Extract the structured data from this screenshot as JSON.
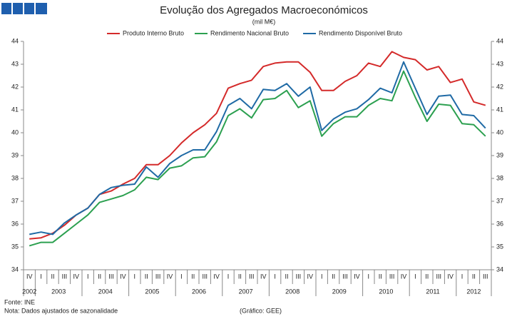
{
  "chart_data": {
    "type": "line",
    "title": "Evolução dos Agregados Macroeconómicos",
    "subtitle": "(mil M€)",
    "source": "Fonte: INE",
    "note": "Nota: Dados ajustados de sazonalidade",
    "credit": "(Gráfico: GEE)",
    "categories": [
      "IV",
      "I",
      "II",
      "III",
      "IV",
      "I",
      "II",
      "III",
      "IV",
      "I",
      "II",
      "III",
      "IV",
      "I",
      "II",
      "III",
      "IV",
      "I",
      "II",
      "III",
      "IV",
      "I",
      "II",
      "III",
      "IV",
      "I",
      "II",
      "III",
      "IV",
      "I",
      "II",
      "III",
      "IV",
      "I",
      "II",
      "III",
      "IV",
      "I",
      "II",
      "III"
    ],
    "years": [
      "2002",
      "2003",
      "2004",
      "2005",
      "2006",
      "2007",
      "2008",
      "2009",
      "2010",
      "2011",
      "2012"
    ],
    "series": [
      {
        "name": "Produto Interno Bruto",
        "color": "#d42a2a",
        "values": [
          35.35,
          35.4,
          35.6,
          35.95,
          36.4,
          36.7,
          37.3,
          37.45,
          37.75,
          38.0,
          38.6,
          38.6,
          39.0,
          39.55,
          40.0,
          40.35,
          40.85,
          41.95,
          42.15,
          42.3,
          42.9,
          43.05,
          43.1,
          43.1,
          42.65,
          41.85,
          41.85,
          42.25,
          42.5,
          43.05,
          42.9,
          43.55,
          43.3,
          43.2,
          42.75,
          42.9,
          42.2,
          42.35,
          41.35,
          41.2
        ]
      },
      {
        "name": "Rendimento Nacional Bruto",
        "color": "#2ca050",
        "values": [
          35.05,
          35.2,
          35.2,
          35.6,
          36.0,
          36.4,
          36.95,
          37.1,
          37.25,
          37.5,
          38.05,
          37.95,
          38.45,
          38.55,
          38.9,
          38.95,
          39.6,
          40.75,
          41.05,
          40.65,
          41.45,
          41.5,
          41.85,
          41.1,
          41.4,
          39.85,
          40.4,
          40.7,
          40.7,
          41.2,
          41.5,
          41.4,
          42.7,
          41.55,
          40.5,
          41.25,
          41.2,
          40.4,
          40.35,
          39.85
        ]
      },
      {
        "name": "Rendimento Disponível Bruto",
        "color": "#1f6aa5",
        "values": [
          35.55,
          35.65,
          35.55,
          36.05,
          36.4,
          36.7,
          37.3,
          37.6,
          37.7,
          37.75,
          38.5,
          38.05,
          38.65,
          39.0,
          39.25,
          39.25,
          40.05,
          41.2,
          41.5,
          41.05,
          41.9,
          41.85,
          42.15,
          41.6,
          42.0,
          40.1,
          40.6,
          40.9,
          41.05,
          41.45,
          41.95,
          41.75,
          43.1,
          41.95,
          40.8,
          41.6,
          41.65,
          40.8,
          40.75,
          40.2
        ]
      }
    ],
    "ylim": [
      34,
      44
    ],
    "yticks": [
      34,
      35,
      36,
      37,
      38,
      39,
      40,
      41,
      42,
      43,
      44
    ],
    "y2lim": [
      34,
      44
    ],
    "y2ticks": [
      34,
      35,
      36,
      37,
      38,
      39,
      40,
      41,
      42,
      43,
      44
    ],
    "legend": "top"
  }
}
